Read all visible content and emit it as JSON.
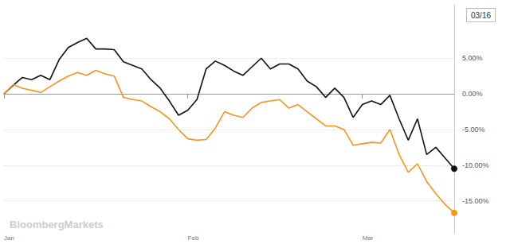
{
  "chart_data": {
    "type": "line",
    "categories": [
      "Jan",
      null,
      null,
      null,
      null,
      null,
      null,
      null,
      null,
      null,
      null,
      null,
      null,
      null,
      null,
      null,
      null,
      null,
      null,
      null,
      "Feb",
      null,
      null,
      null,
      null,
      null,
      null,
      null,
      null,
      null,
      null,
      null,
      null,
      null,
      null,
      null,
      null,
      null,
      null,
      "Mar",
      null,
      null,
      null,
      null,
      null,
      null,
      null,
      null,
      null,
      null
    ],
    "series": [
      {
        "color": "#111111",
        "values": [
          0,
          1.2,
          2.3,
          2.0,
          2.6,
          2.0,
          4.8,
          6.5,
          7.2,
          7.8,
          6.3,
          6.3,
          6.2,
          4.5,
          4.0,
          3.5,
          2.0,
          0.8,
          -1.0,
          -3.0,
          -2.3,
          -0.8,
          3.5,
          4.6,
          4.0,
          3.2,
          2.6,
          3.8,
          5.0,
          3.5,
          4.2,
          4.2,
          3.5,
          1.8,
          1.0,
          -0.5,
          0.8,
          -0.5,
          -3.3,
          -1.5,
          -1.0,
          -1.5,
          -0.2,
          -3.5,
          -6.5,
          -3.5,
          -8.5,
          -7.5,
          -9.0,
          -10.5
        ]
      },
      {
        "color": "#f7941d",
        "values": [
          0,
          1.3,
          0.8,
          0.5,
          0.2,
          1.0,
          1.8,
          2.5,
          3.0,
          2.6,
          3.3,
          2.8,
          2.5,
          -0.5,
          -0.8,
          -1.0,
          -1.8,
          -2.5,
          -3.5,
          -5.0,
          -6.3,
          -6.5,
          -6.4,
          -4.8,
          -2.5,
          -3.0,
          -3.3,
          -2.0,
          -1.2,
          -1.0,
          -0.8,
          -2.0,
          -1.5,
          -2.5,
          -3.5,
          -4.5,
          -4.5,
          -5.0,
          -7.2,
          -7.0,
          -6.8,
          -6.9,
          -5.0,
          -8.5,
          -11.0,
          -9.8,
          -12.3,
          -14.0,
          -15.5,
          -16.7
        ]
      }
    ],
    "ylim": [
      -19.5,
      12.5
    ],
    "yticks": [
      {
        "value": -15,
        "label": "-15.00%"
      },
      {
        "value": -10,
        "label": "-10.00%"
      },
      {
        "value": -5,
        "label": "-5.00%"
      },
      {
        "value": 0,
        "label": "0.00%"
      },
      {
        "value": 5,
        "label": "5.00%"
      }
    ],
    "grid": true,
    "annotations": [
      "03/16",
      "BloombergMarkets"
    ]
  }
}
